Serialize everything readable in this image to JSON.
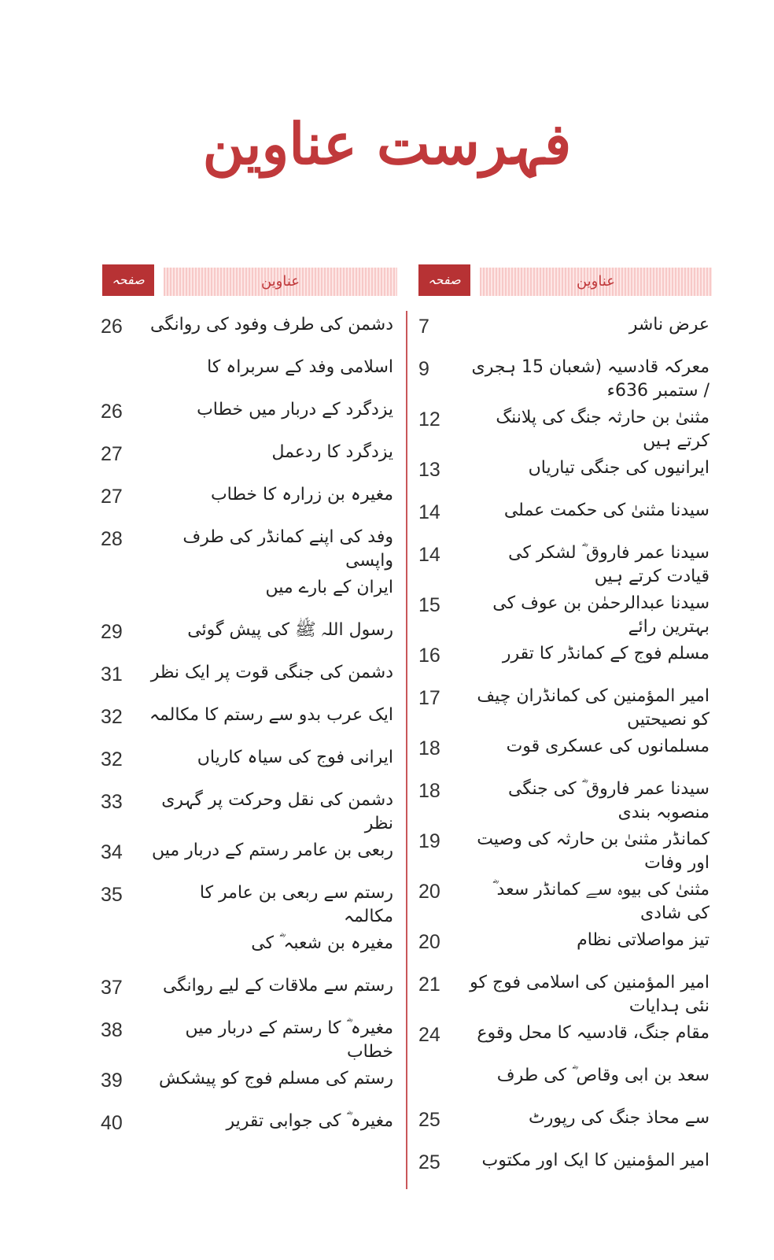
{
  "title": "فہرست عناوین",
  "colors": {
    "accent": "#b73234",
    "header_bg": "#fde6e5"
  },
  "columns": [
    {
      "header_topics": "عناوین",
      "header_page": "صفحہ نمبر",
      "entries": [
        {
          "title": "عرض ناشر",
          "page": "7"
        },
        {
          "title": "معرکہ قادسیہ (شعبان 15 ہجری / ستمبر 636ء",
          "page": "9"
        },
        {
          "title": "مثنیٰ بن حارثہ جنگ کی پلاننگ کرتے ہیں",
          "page": "12"
        },
        {
          "title": "ایرانیوں کی جنگی تیاریاں",
          "page": "13"
        },
        {
          "title": "سیدنا مثنیٰ کی حکمت عملی",
          "page": "14"
        },
        {
          "title": "سیدنا عمر فاروق ؓ لشکر کی قیادت کرتے ہیں",
          "page": "14"
        },
        {
          "title": "سیدنا عبدالرحمٰن بن عوف کی بہترین رائے",
          "page": "15"
        },
        {
          "title": "مسلم فوج کے کمانڈر کا تقرر",
          "page": "16"
        },
        {
          "title": "امیر المؤمنین کی کمانڈران چیف کو نصیحتیں",
          "page": "17"
        },
        {
          "title": "مسلمانوں کی عسکری قوت",
          "page": "18"
        },
        {
          "title": "سیدنا عمر فاروق ؓ کی جنگی منصوبہ بندی",
          "page": "18"
        },
        {
          "title": "کمانڈر مثنیٰ بن حارثہ کی وصیت اور وفات",
          "page": "19"
        },
        {
          "title": "مثنیٰ کی بیوہ سے کمانڈر سعد ؓ کی شادی",
          "page": "20"
        },
        {
          "title": "تیز مواصلاتی نظام",
          "page": "20"
        },
        {
          "title": "امیر المؤمنین کی اسلامی فوج کو نئی ہدایات",
          "page": "21"
        },
        {
          "title": "مقام جنگ، قادسیہ کا محل وقوع",
          "page": "24"
        },
        {
          "title": "سعد بن ابی وقاص ؓ کی طرف",
          "page": ""
        },
        {
          "title": "سے محاذ جنگ کی رپورٹ",
          "page": "25"
        },
        {
          "title": "امیر المؤمنین کا ایک اور مکتوب",
          "page": "25"
        }
      ]
    },
    {
      "header_topics": "عناوین",
      "header_page": "صفحہ نمبر",
      "entries": [
        {
          "title": "دشمن کی طرف وفود کی روانگی",
          "page": "26"
        },
        {
          "title": "اسلامی وفد کے سربراہ کا",
          "page": ""
        },
        {
          "title": "یزدگرد کے دربار میں خطاب",
          "page": "26"
        },
        {
          "title": "یزدگرد کا ردعمل",
          "page": "27"
        },
        {
          "title": "مغیرہ بن زرارہ کا خطاب",
          "page": "27"
        },
        {
          "title": "وفد کی اپنے کمانڈر کی طرف واپسی",
          "page": "28"
        },
        {
          "title": "ایران کے بارے میں",
          "page": ""
        },
        {
          "title": "رسول اللہ ﷺ کی پیش گوئی",
          "page": "29"
        },
        {
          "title": "دشمن کی جنگی قوت پر ایک نظر",
          "page": "31"
        },
        {
          "title": "ایک عرب بدو سے رستم کا مکالمہ",
          "page": "32"
        },
        {
          "title": "ایرانی فوج کی سیاہ کاریاں",
          "page": "32"
        },
        {
          "title": "دشمن کی نقل وحرکت پر گہری نظر",
          "page": "33"
        },
        {
          "title": "ربعی بن عامر رستم کے دربار میں",
          "page": "34"
        },
        {
          "title": "رستم سے ربعی بن عامر کا مکالمہ",
          "page": "35"
        },
        {
          "title": "مغیرہ بن شعبہ ؓ کی",
          "page": ""
        },
        {
          "title": "رستم سے ملاقات کے لیے روانگی",
          "page": "37"
        },
        {
          "title": "مغیرہ ؓ کا رستم کے دربار میں خطاب",
          "page": "38"
        },
        {
          "title": "رستم کی مسلم فوج کو پیشکش",
          "page": "39"
        },
        {
          "title": "مغیرہ ؓ کی جوابی تقریر",
          "page": "40"
        }
      ]
    }
  ]
}
